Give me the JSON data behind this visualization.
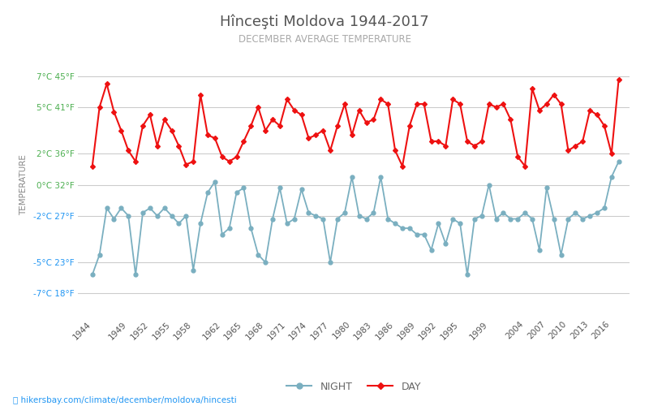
{
  "title": "Hînceşti Moldova 1944-2017",
  "subtitle": "DECEMBER AVERAGE TEMPERATURE",
  "ylabel": "TEMPERATURE",
  "xlabel_url": "hikersbay.com/climate/december/moldova/hincesti",
  "bg_color": "#ffffff",
  "grid_color": "#cccccc",
  "night_color": "#7aafc0",
  "day_color": "#ee1111",
  "years": [
    1944,
    1945,
    1946,
    1947,
    1948,
    1949,
    1950,
    1951,
    1952,
    1953,
    1954,
    1955,
    1956,
    1957,
    1958,
    1959,
    1960,
    1961,
    1962,
    1963,
    1964,
    1965,
    1966,
    1967,
    1968,
    1969,
    1970,
    1971,
    1972,
    1973,
    1974,
    1975,
    1976,
    1977,
    1978,
    1979,
    1980,
    1981,
    1982,
    1983,
    1984,
    1985,
    1986,
    1987,
    1988,
    1989,
    1990,
    1991,
    1992,
    1993,
    1994,
    1995,
    1996,
    1997,
    1998,
    1999,
    2000,
    2001,
    2002,
    2003,
    2004,
    2005,
    2006,
    2007,
    2008,
    2009,
    2010,
    2011,
    2012,
    2013,
    2014,
    2015,
    2016,
    2017
  ],
  "day_temps": [
    1.2,
    5.0,
    6.5,
    4.7,
    3.5,
    2.2,
    1.5,
    3.8,
    4.5,
    2.5,
    4.2,
    3.5,
    2.5,
    1.3,
    1.5,
    5.8,
    3.2,
    3.0,
    1.8,
    1.5,
    1.8,
    2.8,
    3.8,
    5.0,
    3.5,
    4.2,
    3.8,
    5.5,
    4.8,
    4.5,
    3.0,
    3.2,
    3.5,
    2.2,
    3.8,
    5.2,
    3.2,
    4.8,
    4.0,
    4.2,
    5.5,
    5.2,
    2.2,
    1.2,
    3.8,
    5.2,
    5.2,
    2.8,
    2.8,
    2.5,
    5.5,
    5.2,
    2.8,
    2.5,
    2.8,
    5.2,
    5.0,
    5.2,
    4.2,
    1.8,
    1.2,
    6.2,
    4.8,
    5.2,
    5.8,
    5.2,
    2.2,
    2.5,
    2.8,
    4.8,
    4.5,
    3.8,
    2.0,
    6.8
  ],
  "night_temps": [
    -5.8,
    -4.5,
    -1.5,
    -2.2,
    -1.5,
    -2.0,
    -5.8,
    -1.8,
    -1.5,
    -2.0,
    -1.5,
    -2.0,
    -2.5,
    -2.0,
    -5.5,
    -2.5,
    -0.5,
    0.2,
    -3.2,
    -2.8,
    -0.5,
    -0.2,
    -2.8,
    -4.5,
    -5.0,
    -2.2,
    -0.2,
    -2.5,
    -2.2,
    -0.3,
    -1.8,
    -2.0,
    -2.2,
    -5.0,
    -2.2,
    -1.8,
    0.5,
    -2.0,
    -2.2,
    -1.8,
    0.5,
    -2.2,
    -2.5,
    -2.8,
    -2.8,
    -3.2,
    -3.2,
    -4.2,
    -2.5,
    -3.8,
    -2.2,
    -2.5,
    -5.8,
    -2.2,
    -2.0,
    0.0,
    -2.2,
    -1.8,
    -2.2,
    -2.2,
    -1.8,
    -2.2,
    -4.2,
    -0.2,
    -2.2,
    -4.5,
    -2.2,
    -1.8,
    -2.2,
    -2.0,
    -1.8,
    -1.5,
    0.5,
    1.5
  ],
  "yticks_c": [
    -7,
    -5,
    -2,
    0,
    2,
    5,
    7
  ],
  "yticks_f": [
    18,
    23,
    27,
    32,
    36,
    41,
    45
  ],
  "ylim": [
    -8.5,
    8.5
  ],
  "xtick_years": [
    1944,
    1949,
    1952,
    1955,
    1958,
    1962,
    1965,
    1968,
    1971,
    1974,
    1977,
    1980,
    1983,
    1986,
    1989,
    1992,
    1995,
    1999,
    2004,
    2007,
    2010,
    2013,
    2016
  ]
}
